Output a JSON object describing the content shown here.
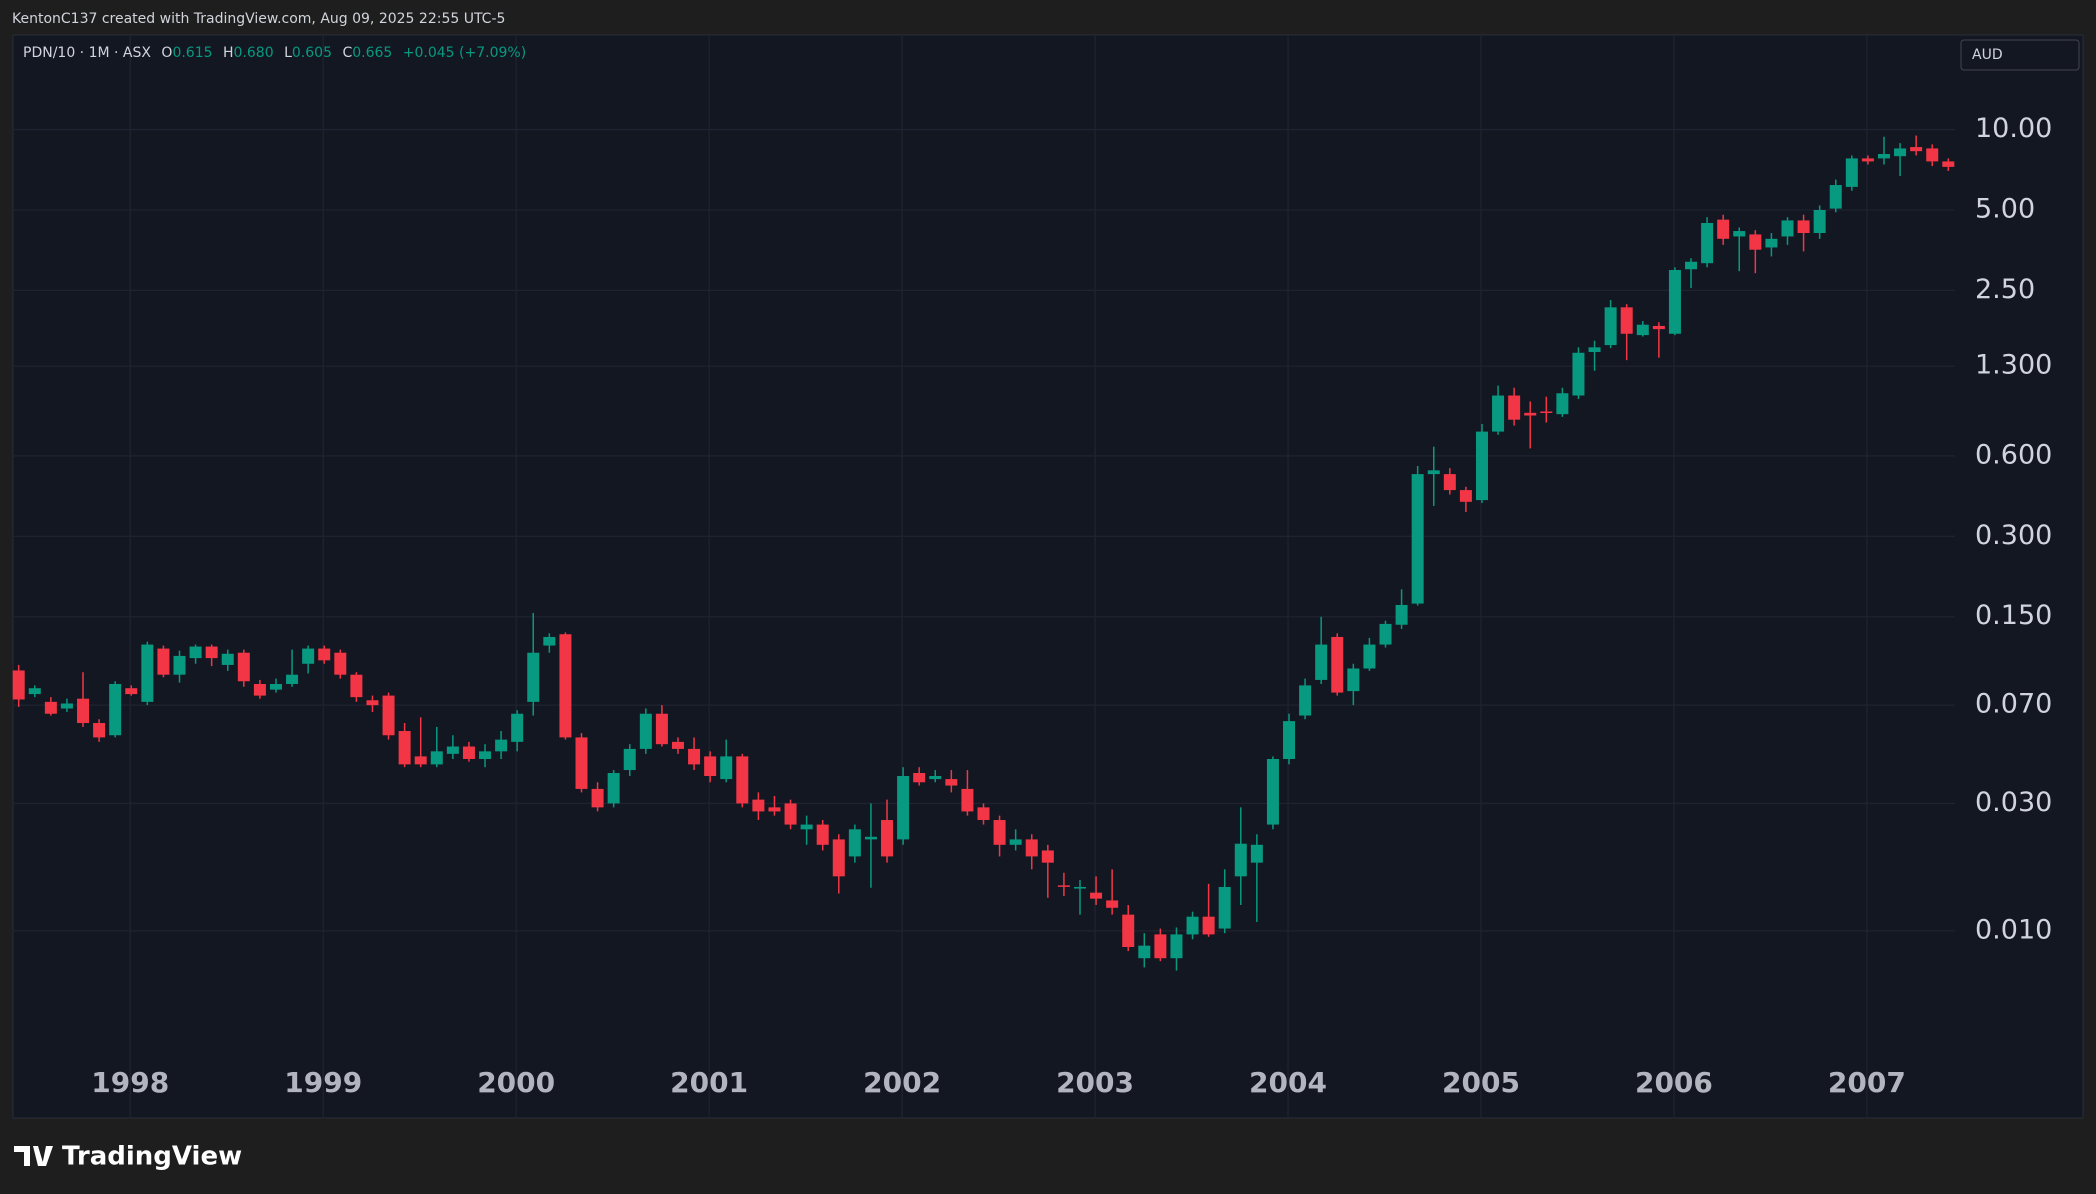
{
  "header": {
    "text": "KentonC137 created with TradingView.com, Aug 09, 2025 22:55 UTC-5"
  },
  "chart_data": {
    "type": "candlestick",
    "symbol_info": "PDN/10 · 1M · ASX",
    "legend_values": [
      {
        "label": "O",
        "value": "0.615"
      },
      {
        "label": "H",
        "value": "0.680"
      },
      {
        "label": "L",
        "value": "0.605"
      },
      {
        "label": "C",
        "value": "0.665"
      }
    ],
    "change": "+0.045 (+7.09%)",
    "currency": "AUD",
    "log_scale": true,
    "grid": true,
    "up_color": "#089981",
    "down_color": "#f23645",
    "ylim": [
      0.0034,
      22.6
    ],
    "yticks": [
      {
        "value": 10,
        "label": "10.00"
      },
      {
        "value": 5,
        "label": "5.00"
      },
      {
        "value": 2.5,
        "label": "2.50"
      },
      {
        "value": 1.3,
        "label": "1.300"
      },
      {
        "value": 0.6,
        "label": "0.600"
      },
      {
        "value": 0.3,
        "label": "0.300"
      },
      {
        "value": 0.15,
        "label": "0.150"
      },
      {
        "value": 0.07,
        "label": "0.070"
      },
      {
        "value": 0.03,
        "label": "0.030"
      },
      {
        "value": 0.01,
        "label": "0.010"
      }
    ],
    "categories": [
      null,
      null,
      null,
      null,
      null,
      null,
      null,
      "1998",
      null,
      null,
      null,
      null,
      null,
      null,
      null,
      null,
      null,
      null,
      null,
      "1999",
      null,
      null,
      null,
      null,
      null,
      null,
      null,
      null,
      null,
      null,
      null,
      "2000",
      null,
      null,
      null,
      null,
      null,
      null,
      null,
      null,
      null,
      null,
      null,
      "2001",
      null,
      null,
      null,
      null,
      null,
      null,
      null,
      null,
      null,
      null,
      null,
      "2002",
      null,
      null,
      null,
      null,
      null,
      null,
      null,
      null,
      null,
      null,
      null,
      "2003",
      null,
      null,
      null,
      null,
      null,
      null,
      null,
      null,
      null,
      null,
      null,
      "2004",
      null,
      null,
      null,
      null,
      null,
      null,
      null,
      null,
      null,
      null,
      null,
      "2005",
      null,
      null,
      null,
      null,
      null,
      null,
      null,
      null,
      null,
      null,
      null,
      "2006",
      null,
      null,
      null,
      null,
      null,
      null,
      null,
      null,
      null,
      null,
      null,
      "2007",
      null,
      null,
      null,
      null,
      null
    ],
    "open": [
      0.0944,
      0.077,
      0.072,
      0.068,
      0.074,
      0.06,
      0.054,
      0.081,
      0.072,
      0.114,
      0.091,
      0.105,
      0.116,
      0.099,
      0.11,
      0.084,
      0.08,
      0.084,
      0.1,
      0.114,
      0.11,
      0.091,
      0.073,
      0.076,
      0.056,
      0.045,
      0.042,
      0.046,
      0.049,
      0.044,
      0.047,
      0.051,
      0.072,
      0.117,
      0.129,
      0.053,
      0.034,
      0.03,
      0.04,
      0.048,
      0.065,
      0.051,
      0.048,
      0.045,
      0.037,
      0.045,
      0.031,
      0.029,
      0.03,
      0.024,
      0.025,
      0.022,
      0.019,
      0.022,
      0.026,
      0.022,
      0.039,
      0.037,
      0.037,
      0.034,
      0.029,
      0.026,
      0.021,
      0.022,
      0.02,
      0.0148,
      0.0144,
      0.0139,
      0.013,
      0.0115,
      0.0079,
      0.0097,
      0.0079,
      0.0097,
      0.0113,
      0.0102,
      0.016,
      0.018,
      0.025,
      0.044,
      0.064,
      0.087,
      0.126,
      0.079,
      0.096,
      0.118,
      0.14,
      0.168,
      0.513,
      0.513,
      0.447,
      0.41,
      0.74,
      1.01,
      0.87,
      0.88,
      0.86,
      1.01,
      1.47,
      1.56,
      2.16,
      1.7,
      1.84,
      1.72,
      3.0,
      3.16,
      4.6,
      3.98,
      4.05,
      3.62,
      3.98,
      4.57,
      4.1,
      5.06,
      6.1,
      7.8,
      7.8,
      7.95,
      8.6,
      8.5,
      7.6
    ],
    "high": [
      0.099,
      0.083,
      0.075,
      0.074,
      0.093,
      0.062,
      0.086,
      0.083,
      0.121,
      0.117,
      0.112,
      0.118,
      0.118,
      0.113,
      0.113,
      0.087,
      0.088,
      0.113,
      0.117,
      0.117,
      0.113,
      0.093,
      0.076,
      0.078,
      0.06,
      0.063,
      0.058,
      0.054,
      0.051,
      0.05,
      0.056,
      0.067,
      0.155,
      0.13,
      0.131,
      0.055,
      0.036,
      0.04,
      0.05,
      0.068,
      0.07,
      0.053,
      0.053,
      0.047,
      0.052,
      0.046,
      0.033,
      0.032,
      0.031,
      0.027,
      0.026,
      0.023,
      0.025,
      0.03,
      0.031,
      0.041,
      0.041,
      0.04,
      0.04,
      0.04,
      0.03,
      0.027,
      0.024,
      0.023,
      0.021,
      0.0165,
      0.0155,
      0.016,
      0.017,
      0.0125,
      0.0098,
      0.0102,
      0.0103,
      0.0118,
      0.015,
      0.017,
      0.029,
      0.023,
      0.045,
      0.065,
      0.088,
      0.15,
      0.13,
      0.1,
      0.125,
      0.145,
      0.19,
      0.55,
      0.65,
      0.54,
      0.46,
      0.79,
      1.1,
      1.08,
      0.96,
      1.0,
      1.08,
      1.53,
      1.62,
      2.3,
      2.22,
      1.92,
      1.9,
      3.05,
      3.3,
      4.7,
      4.8,
      4.3,
      4.2,
      4.1,
      4.7,
      4.8,
      5.2,
      6.5,
      8.0,
      8.0,
      9.4,
      8.9,
      9.5,
      8.8,
      7.8
    ],
    "low": [
      0.069,
      0.075,
      0.064,
      0.066,
      0.058,
      0.051,
      0.053,
      0.076,
      0.07,
      0.089,
      0.085,
      0.1,
      0.098,
      0.094,
      0.082,
      0.074,
      0.078,
      0.082,
      0.092,
      0.1,
      0.088,
      0.072,
      0.066,
      0.052,
      0.041,
      0.041,
      0.041,
      0.044,
      0.043,
      0.041,
      0.044,
      0.047,
      0.064,
      0.11,
      0.052,
      0.033,
      0.028,
      0.029,
      0.038,
      0.046,
      0.049,
      0.046,
      0.04,
      0.036,
      0.036,
      0.029,
      0.026,
      0.027,
      0.024,
      0.021,
      0.02,
      0.0138,
      0.018,
      0.0145,
      0.018,
      0.021,
      0.035,
      0.036,
      0.033,
      0.027,
      0.025,
      0.019,
      0.02,
      0.017,
      0.0133,
      0.0135,
      0.0115,
      0.0125,
      0.0115,
      0.0084,
      0.0073,
      0.0077,
      0.0071,
      0.0093,
      0.0095,
      0.0098,
      0.0125,
      0.0108,
      0.024,
      0.042,
      0.062,
      0.084,
      0.076,
      0.07,
      0.094,
      0.115,
      0.135,
      0.165,
      0.39,
      0.43,
      0.37,
      0.4,
      0.72,
      0.78,
      0.64,
      0.8,
      0.84,
      0.98,
      1.25,
      1.52,
      1.37,
      1.68,
      1.4,
      1.7,
      2.55,
      3.05,
      3.7,
      2.95,
      2.9,
      3.35,
      3.7,
      3.5,
      3.9,
      4.9,
      5.9,
      7.4,
      7.4,
      6.7,
      8.0,
      7.3,
      7.0
    ],
    "close": [
      0.0735,
      0.081,
      0.065,
      0.071,
      0.06,
      0.053,
      0.084,
      0.077,
      0.118,
      0.091,
      0.107,
      0.116,
      0.105,
      0.109,
      0.086,
      0.076,
      0.084,
      0.091,
      0.114,
      0.103,
      0.091,
      0.075,
      0.07,
      0.054,
      0.042,
      0.042,
      0.047,
      0.049,
      0.044,
      0.047,
      0.052,
      0.065,
      0.11,
      0.126,
      0.053,
      0.034,
      0.029,
      0.039,
      0.048,
      0.065,
      0.05,
      0.048,
      0.042,
      0.038,
      0.045,
      0.03,
      0.028,
      0.028,
      0.025,
      0.025,
      0.021,
      0.016,
      0.024,
      0.0225,
      0.019,
      0.038,
      0.036,
      0.038,
      0.035,
      0.028,
      0.026,
      0.021,
      0.022,
      0.019,
      0.018,
      0.0147,
      0.0146,
      0.0132,
      0.0122,
      0.0087,
      0.0088,
      0.0079,
      0.0097,
      0.0113,
      0.0097,
      0.0146,
      0.0212,
      0.021,
      0.044,
      0.061,
      0.083,
      0.118,
      0.078,
      0.096,
      0.118,
      0.141,
      0.166,
      0.513,
      0.53,
      0.447,
      0.404,
      0.74,
      1.01,
      0.82,
      0.85,
      0.87,
      1.03,
      1.46,
      1.53,
      2.16,
      1.72,
      1.86,
      1.79,
      2.98,
      3.2,
      4.47,
      3.9,
      4.17,
      3.55,
      3.9,
      4.57,
      4.1,
      5.0,
      6.2,
      7.8,
      7.6,
      8.1,
      8.5,
      8.3,
      7.6,
      7.25
    ]
  },
  "footer": {
    "logo": "TradingView"
  }
}
